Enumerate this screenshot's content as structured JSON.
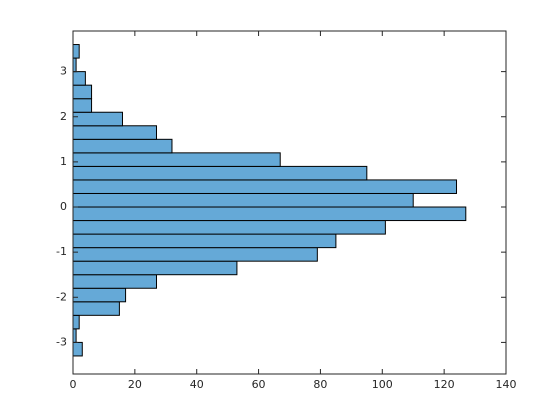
{
  "chart_data": {
    "type": "histogram",
    "orientation": "horizontal",
    "bins": [
      -3.3,
      -3.0,
      -2.7,
      -2.4,
      -2.1,
      -1.8,
      -1.5,
      -1.2,
      -0.9,
      -0.6,
      -0.3,
      0,
      0.3,
      0.6,
      0.9,
      1.2,
      1.5,
      1.8,
      2.1,
      2.4,
      2.7,
      3.0,
      3.3,
      3.6
    ],
    "values": [
      3,
      1,
      2,
      15,
      17,
      27,
      53,
      79,
      85,
      101,
      127,
      110,
      124,
      95,
      67,
      32,
      27,
      16,
      6,
      6,
      4,
      1,
      2
    ],
    "color": "#65a9d7",
    "edgecolor": "#000000",
    "xlim": [
      0,
      140
    ],
    "xticks": [
      0,
      20,
      40,
      60,
      80,
      100,
      120,
      140
    ],
    "ylim": [
      -3.7,
      3.9
    ],
    "yticks": [
      -3,
      -2,
      -1,
      0,
      1,
      2,
      3
    ]
  }
}
